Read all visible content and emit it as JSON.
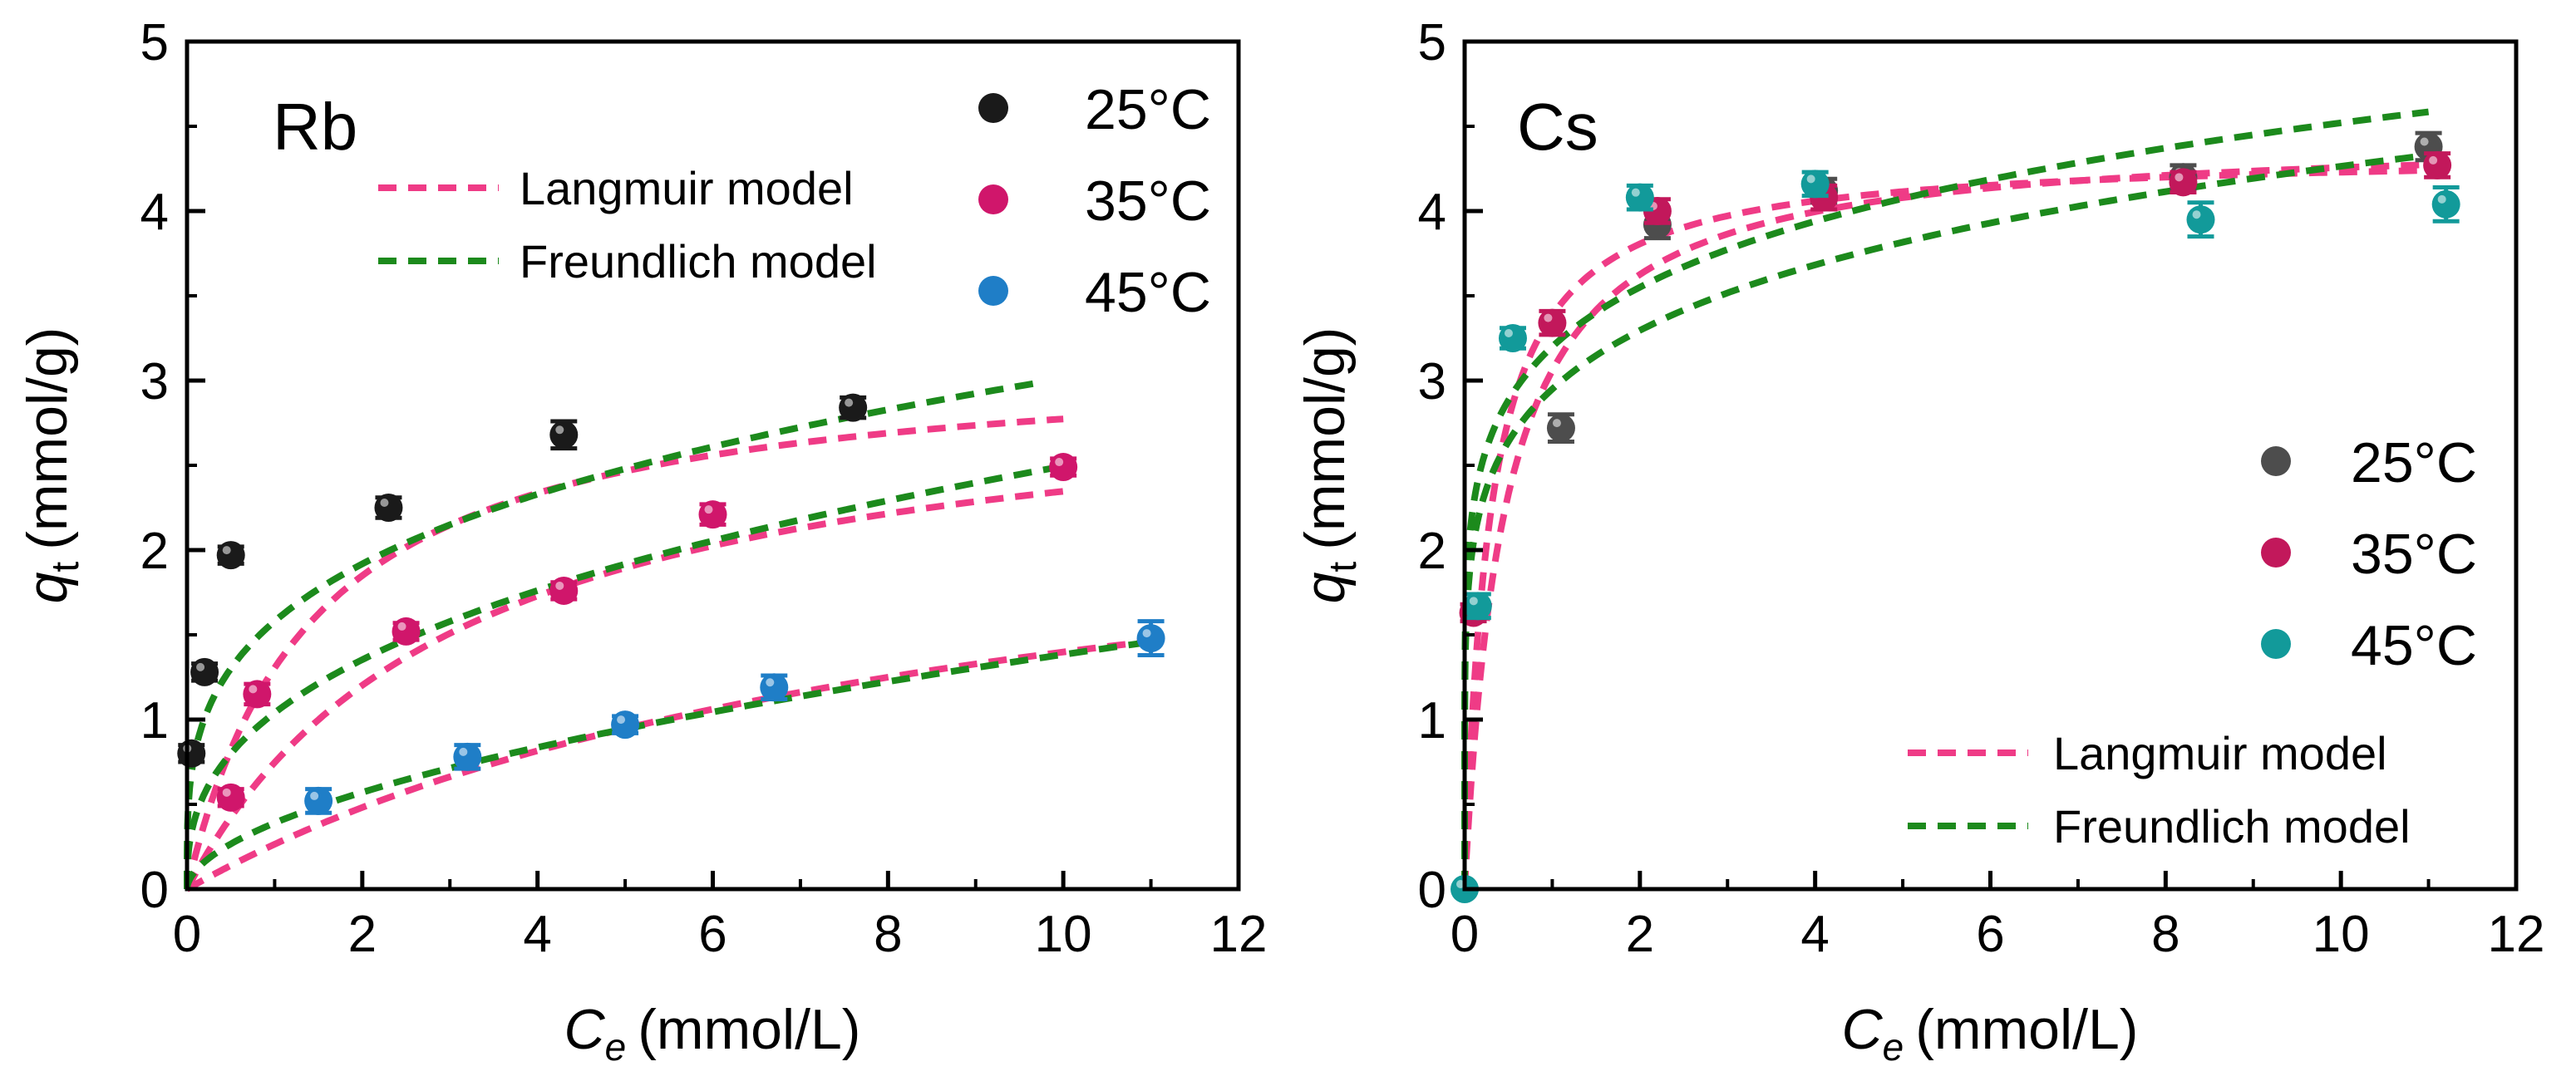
{
  "chart_data": [
    {
      "type": "scatter",
      "panel_label": "Rb",
      "xlabel_main": "C",
      "xlabel_sub": "e",
      "xlabel_unit": "(mmol/L)",
      "ylabel_main": "q",
      "ylabel_sub": "t",
      "ylabel_unit": "(mmol/g)",
      "xlim": [
        0,
        12
      ],
      "ylim": [
        0,
        5
      ],
      "xticks": [
        "0",
        "2",
        "4",
        "6",
        "8",
        "10",
        "12"
      ],
      "yticks": [
        "0",
        "1",
        "2",
        "3",
        "4",
        "5"
      ],
      "legend_position": "top-right",
      "model_legend_position": "top-center",
      "series": [
        {
          "name": "25°C",
          "color": "#1a1a1a",
          "x": [
            0.05,
            0.2,
            0.5,
            2.3,
            4.3,
            7.6
          ],
          "y": [
            0.8,
            1.28,
            1.97,
            2.25,
            2.68,
            2.84
          ],
          "err": [
            0.05,
            0.05,
            0.05,
            0.06,
            0.08,
            0.06
          ]
        },
        {
          "name": "35°C",
          "color": "#d0166b",
          "x": [
            0.5,
            0.8,
            2.5,
            4.3,
            6.0,
            10.0
          ],
          "y": [
            0.54,
            1.15,
            1.52,
            1.76,
            2.21,
            2.49
          ],
          "err": [
            0.05,
            0.06,
            0.05,
            0.05,
            0.06,
            0.05
          ]
        },
        {
          "name": "45°C",
          "color": "#1f7ec7",
          "x": [
            1.5,
            3.2,
            5.0,
            6.7,
            11.0
          ],
          "y": [
            0.52,
            0.78,
            0.97,
            1.19,
            1.48
          ],
          "err": [
            0.07,
            0.07,
            0.05,
            0.07,
            0.1
          ]
        }
      ],
      "models": [
        {
          "name": "Langmuir model",
          "color": "#ef3b86",
          "kind": "langmuir",
          "fits": [
            {
              "qm": 3.17,
              "K": 0.7,
              "xmax": 10.0
            },
            {
              "qm": 3.08,
              "K": 0.32,
              "xmax": 10.0
            },
            {
              "qm": 2.67,
              "K": 0.11,
              "xmax": 11.0
            }
          ]
        },
        {
          "name": "Freundlich model",
          "color": "#1c8a1c",
          "kind": "freundlich",
          "fits": [
            {
              "kf": 1.58,
              "n": 0.28,
              "xmax": 9.7
            },
            {
              "kf": 1.04,
              "n": 0.38,
              "xmax": 10.0
            },
            {
              "kf": 0.39,
              "n": 0.55,
              "xmax": 11.0
            }
          ]
        }
      ]
    },
    {
      "type": "scatter",
      "panel_label": "Cs",
      "xlabel_main": "C",
      "xlabel_sub": "e",
      "xlabel_unit": "(mmol/L)",
      "ylabel_main": "q",
      "ylabel_sub": "t",
      "ylabel_unit": "(mmol/g)",
      "xlim": [
        0,
        12
      ],
      "ylim": [
        0,
        5
      ],
      "xticks": [
        "0",
        "2",
        "4",
        "6",
        "8",
        "10",
        "12"
      ],
      "yticks": [
        "0",
        "1",
        "2",
        "3",
        "4",
        "5"
      ],
      "legend_position": "center-right",
      "model_legend_position": "bottom-right",
      "series": [
        {
          "name": "25°C",
          "color": "#4d4d4d",
          "x": [
            1.1,
            2.2,
            4.1,
            8.2,
            11.0
          ],
          "y": [
            2.72,
            3.92,
            4.12,
            4.2,
            4.38
          ],
          "err": [
            0.08,
            0.08,
            0.07,
            0.07,
            0.08
          ]
        },
        {
          "name": "35°C",
          "color": "#c2185b",
          "x": [
            0.1,
            1.0,
            2.2,
            4.1,
            8.2,
            11.1
          ],
          "y": [
            1.63,
            3.34,
            4.0,
            4.08,
            4.17,
            4.27
          ],
          "err": [
            0.05,
            0.07,
            0.07,
            0.07,
            0.06,
            0.07
          ]
        },
        {
          "name": "45°C",
          "color": "#129a9a",
          "x": [
            0.0,
            0.15,
            0.55,
            2.0,
            4.0,
            8.4,
            11.2
          ],
          "y": [
            0.0,
            1.67,
            3.25,
            4.08,
            4.16,
            3.95,
            4.04
          ],
          "err": [
            0.0,
            0.07,
            0.06,
            0.07,
            0.07,
            0.1,
            0.1
          ]
        }
      ],
      "models": [
        {
          "name": "Langmuir model",
          "color": "#ef3b86",
          "kind": "langmuir",
          "fits": [
            {
              "qm": 4.35,
              "K": 3.5,
              "xmax": 11.1
            },
            {
              "qm": 4.45,
              "K": 2.2,
              "xmax": 11.1
            }
          ]
        },
        {
          "name": "Freundlich model",
          "color": "#1c8a1c",
          "kind": "freundlich",
          "fits": [
            {
              "kf": 3.2,
              "n": 0.15,
              "xmax": 11.0
            },
            {
              "kf": 2.95,
              "n": 0.16,
              "xmax": 11.0
            }
          ]
        }
      ]
    }
  ]
}
